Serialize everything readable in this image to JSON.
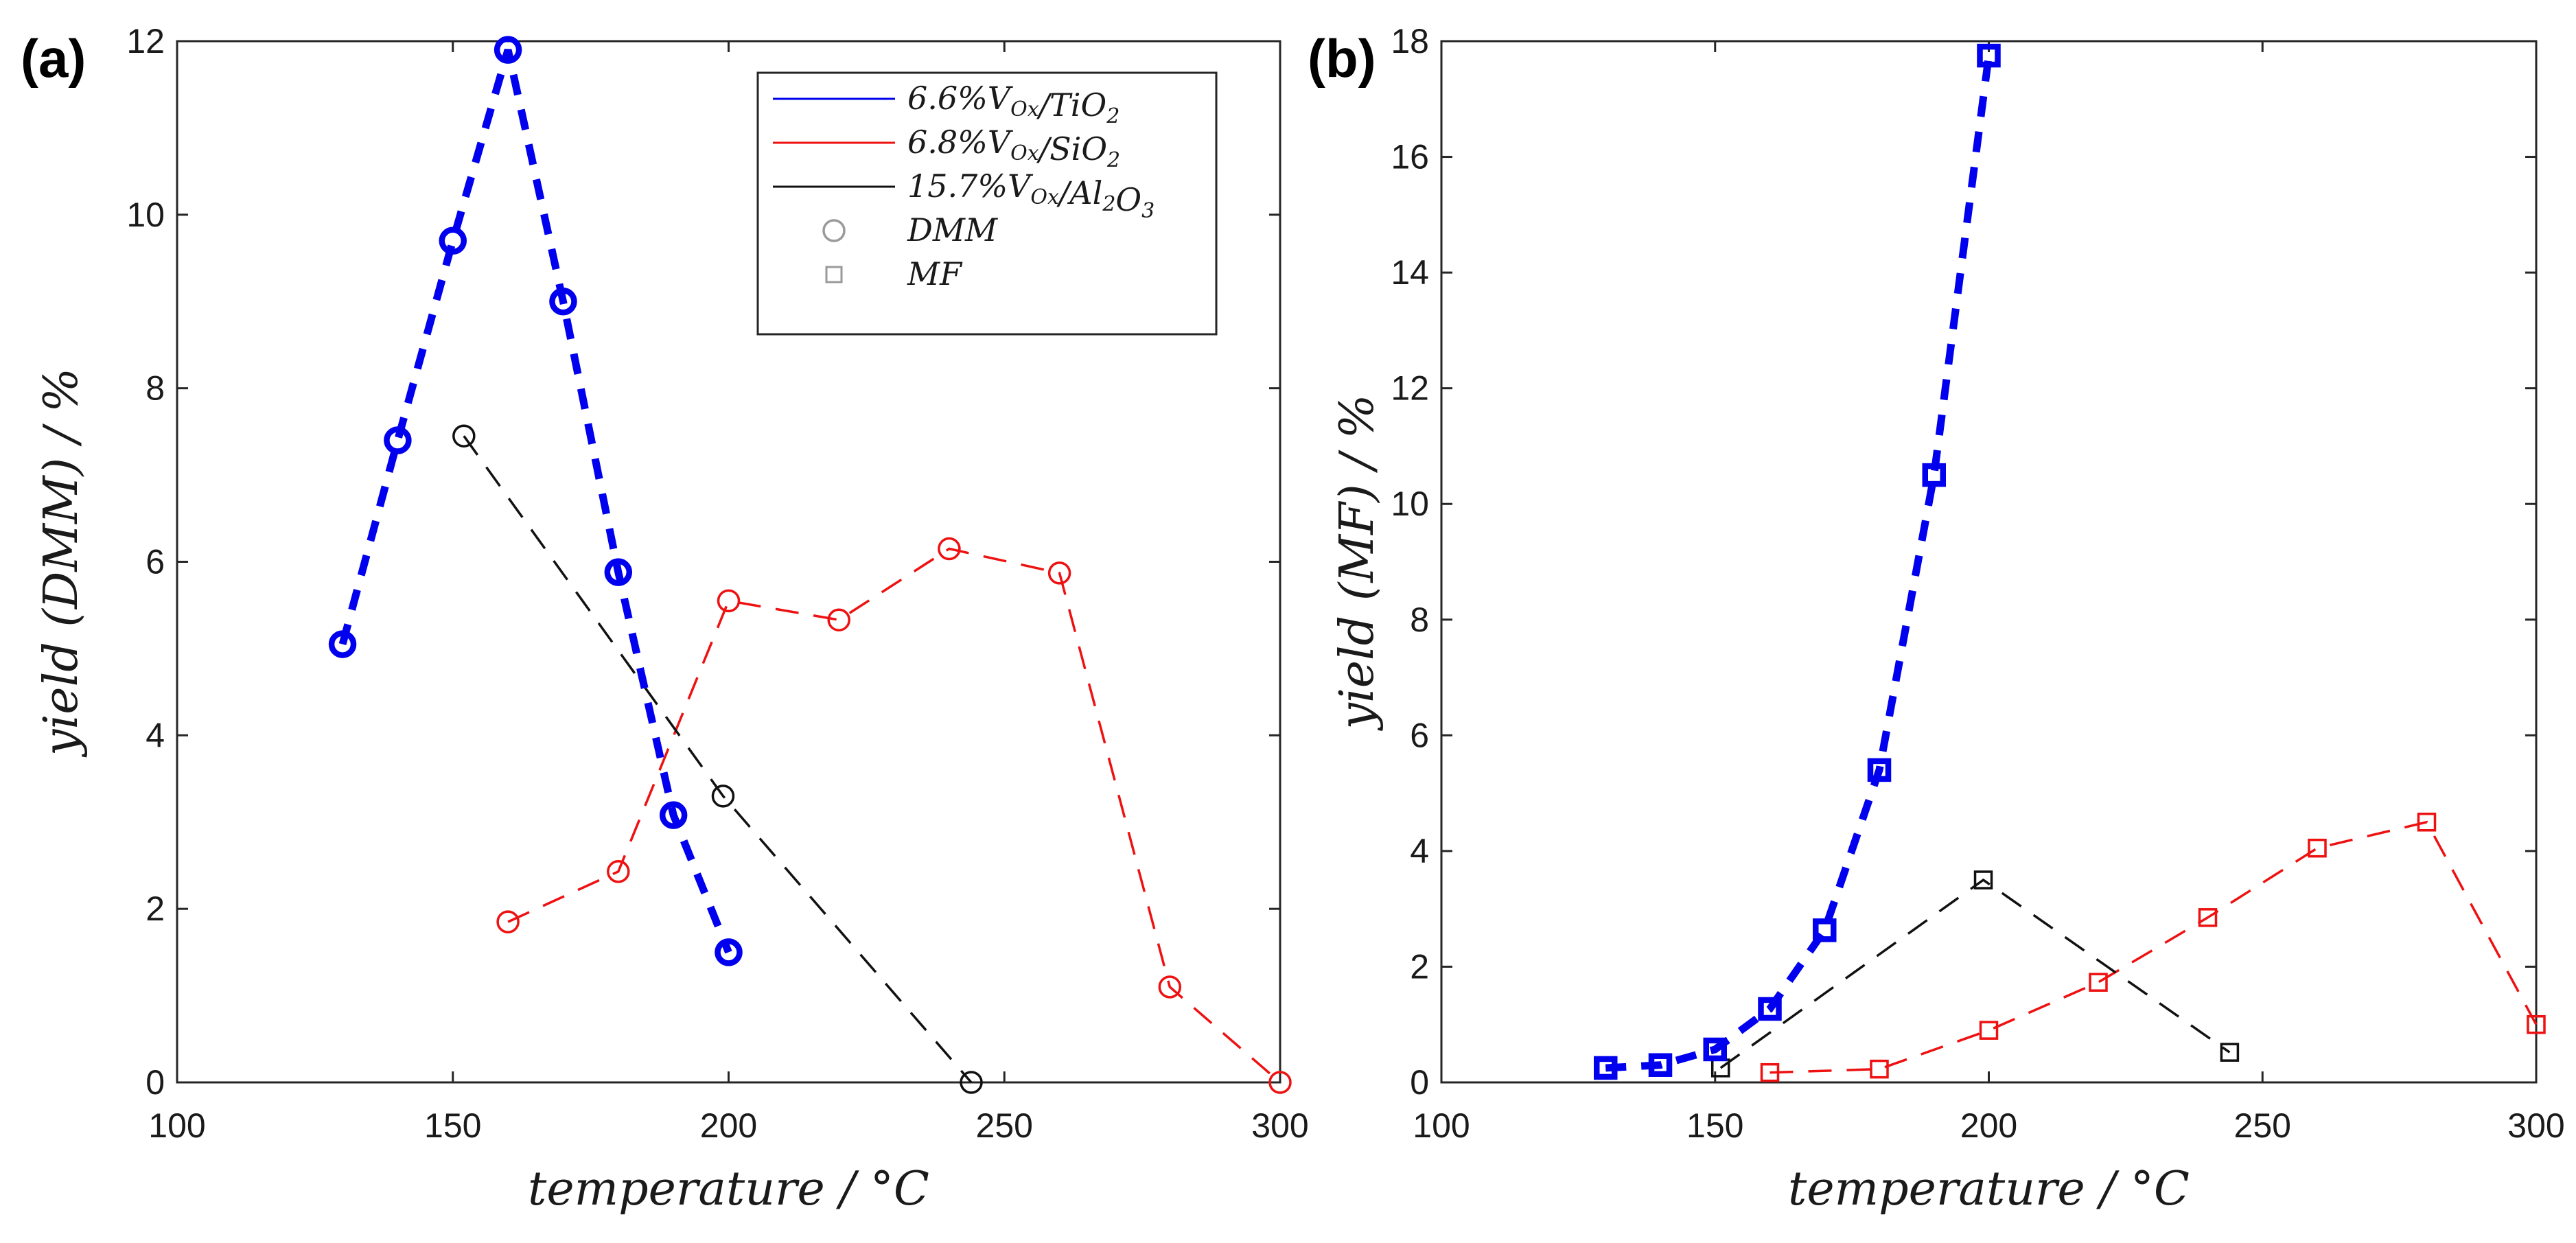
{
  "colors": {
    "TiO2": "#0000ee",
    "SiO2": "#ee1111",
    "Al2O3": "#111111",
    "legend_marker": "#9a9a9a",
    "axis": "#262626"
  },
  "chart_data": [
    {
      "type": "line",
      "panel_label": "(a)",
      "xlabel": "temperature   /   °C",
      "ylabel": "yield   (DMM)   /   %",
      "xlim": [
        100,
        300
      ],
      "ylim": [
        0,
        12
      ],
      "xticks": [
        100,
        150,
        200,
        250,
        300
      ],
      "yticks": [
        0,
        2,
        4,
        6,
        8,
        10,
        12
      ],
      "marker": "circle",
      "series": [
        {
          "key": "TiO2",
          "name": "6.6%VOx/TiO2",
          "bold": true,
          "x": [
            130,
            140,
            150,
            160,
            170,
            180,
            190,
            200
          ],
          "y": [
            5.05,
            7.4,
            9.7,
            11.9,
            9.0,
            5.88,
            3.08,
            1.5
          ]
        },
        {
          "key": "SiO2",
          "name": "6.8%VOx/SiO2",
          "bold": false,
          "x": [
            160,
            180,
            200,
            220,
            240,
            260,
            280,
            300
          ],
          "y": [
            1.85,
            2.43,
            5.55,
            5.33,
            6.15,
            5.87,
            1.1,
            0.0
          ]
        },
        {
          "key": "Al2O3",
          "name": "15.7%VOx/Al2O3",
          "bold": false,
          "x": [
            152,
            199,
            244
          ],
          "y": [
            7.45,
            3.3,
            0.0
          ]
        }
      ],
      "legend": {
        "position": "top-right",
        "entries": [
          {
            "key": "TiO2",
            "kind": "line",
            "label": "6.6%V",
            "sub": "Ox",
            "rest": "/TiO",
            "sub2": "2"
          },
          {
            "key": "SiO2",
            "kind": "line",
            "label": "6.8%V",
            "sub": "Ox",
            "rest": "/SiO",
            "sub2": "2"
          },
          {
            "key": "Al2O3",
            "kind": "line",
            "label": "15.7%V",
            "sub": "Ox",
            "rest": "/Al",
            "sub2": "2",
            "rest2": "O",
            "sub3": "3"
          },
          {
            "key": "DMM",
            "kind": "circle",
            "label": "DMM"
          },
          {
            "key": "MF",
            "kind": "square",
            "label": "MF"
          }
        ]
      }
    },
    {
      "type": "line",
      "panel_label": "(b)",
      "xlabel": "temperature   /   °C",
      "ylabel": "yield   (MF)   /   %",
      "xlim": [
        100,
        300
      ],
      "ylim": [
        0,
        18
      ],
      "xticks": [
        100,
        150,
        200,
        250,
        300
      ],
      "yticks": [
        0,
        2,
        4,
        6,
        8,
        10,
        12,
        14,
        16,
        18
      ],
      "marker": "square",
      "series": [
        {
          "key": "TiO2",
          "name": "6.6%VOx/TiO2",
          "bold": true,
          "x": [
            130,
            140,
            150,
            160,
            170,
            180,
            190,
            200
          ],
          "y": [
            0.25,
            0.3,
            0.57,
            1.27,
            2.63,
            5.4,
            10.5,
            17.75
          ]
        },
        {
          "key": "SiO2",
          "name": "6.8%VOx/SiO2",
          "bold": false,
          "x": [
            160,
            180,
            200,
            220,
            240,
            260,
            280,
            300
          ],
          "y": [
            0.17,
            0.23,
            0.9,
            1.73,
            2.85,
            4.05,
            4.5,
            1.0
          ]
        },
        {
          "key": "Al2O3",
          "name": "15.7%VOx/Al2O3",
          "bold": false,
          "x": [
            151,
            199,
            244
          ],
          "y": [
            0.25,
            3.5,
            0.52
          ]
        }
      ]
    }
  ]
}
